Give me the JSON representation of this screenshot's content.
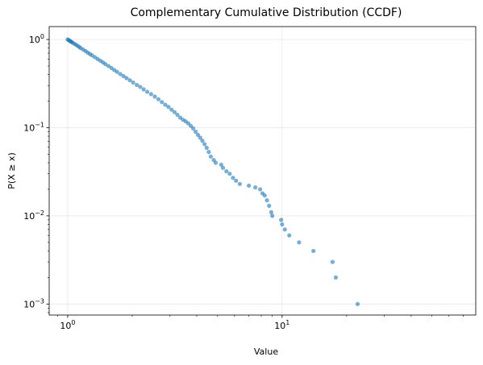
{
  "chart_data": {
    "type": "scatter",
    "title": "Complementary Cumulative Distribution (CCDF)",
    "xlabel": "Value",
    "ylabel": "P(X ≥ x)",
    "xscale": "log",
    "yscale": "log",
    "xlim": [
      0.82,
      80
    ],
    "ylim": [
      0.00075,
      1.4
    ],
    "grid": true,
    "marker_color": "#1f77b4",
    "x_ticks": [
      {
        "value": 1,
        "base": "10",
        "exp": "0"
      },
      {
        "value": 10,
        "base": "10",
        "exp": "1"
      }
    ],
    "y_ticks": [
      {
        "value": 1,
        "base": "10",
        "exp": "0"
      },
      {
        "value": 0.1,
        "base": "10",
        "exp": "−1"
      },
      {
        "value": 0.01,
        "base": "10",
        "exp": "−2"
      },
      {
        "value": 0.001,
        "base": "10",
        "exp": "−3"
      }
    ],
    "points": [
      [
        1.0,
        1.0
      ],
      [
        1.01,
        0.985
      ],
      [
        1.02,
        0.97
      ],
      [
        1.03,
        0.955
      ],
      [
        1.04,
        0.94
      ],
      [
        1.05,
        0.925
      ],
      [
        1.07,
        0.9
      ],
      [
        1.09,
        0.875
      ],
      [
        1.11,
        0.85
      ],
      [
        1.13,
        0.825
      ],
      [
        1.15,
        0.8
      ],
      [
        1.18,
        0.77
      ],
      [
        1.21,
        0.74
      ],
      [
        1.24,
        0.71
      ],
      [
        1.27,
        0.685
      ],
      [
        1.3,
        0.66
      ],
      [
        1.34,
        0.63
      ],
      [
        1.38,
        0.6
      ],
      [
        1.42,
        0.575
      ],
      [
        1.46,
        0.55
      ],
      [
        1.5,
        0.525
      ],
      [
        1.55,
        0.5
      ],
      [
        1.6,
        0.475
      ],
      [
        1.65,
        0.45
      ],
      [
        1.7,
        0.43
      ],
      [
        1.76,
        0.405
      ],
      [
        1.82,
        0.385
      ],
      [
        1.88,
        0.365
      ],
      [
        1.95,
        0.345
      ],
      [
        2.02,
        0.325
      ],
      [
        2.1,
        0.305
      ],
      [
        2.18,
        0.29
      ],
      [
        2.26,
        0.272
      ],
      [
        2.35,
        0.255
      ],
      [
        2.45,
        0.24
      ],
      [
        2.55,
        0.225
      ],
      [
        2.65,
        0.21
      ],
      [
        2.75,
        0.195
      ],
      [
        2.85,
        0.182
      ],
      [
        2.95,
        0.172
      ],
      [
        3.05,
        0.16
      ],
      [
        3.15,
        0.15
      ],
      [
        3.25,
        0.14
      ],
      [
        3.35,
        0.13
      ],
      [
        3.45,
        0.123
      ],
      [
        3.55,
        0.118
      ],
      [
        3.65,
        0.112
      ],
      [
        3.75,
        0.105
      ],
      [
        3.85,
        0.098
      ],
      [
        3.95,
        0.09
      ],
      [
        4.05,
        0.083
      ],
      [
        4.15,
        0.077
      ],
      [
        4.25,
        0.071
      ],
      [
        4.35,
        0.065
      ],
      [
        4.45,
        0.059
      ],
      [
        4.55,
        0.053
      ],
      [
        4.65,
        0.047
      ],
      [
        4.8,
        0.043
      ],
      [
        4.9,
        0.04
      ],
      [
        5.2,
        0.038
      ],
      [
        5.3,
        0.035
      ],
      [
        5.5,
        0.032
      ],
      [
        5.7,
        0.03
      ],
      [
        5.9,
        0.027
      ],
      [
        6.1,
        0.025
      ],
      [
        6.35,
        0.023
      ],
      [
        7.0,
        0.022
      ],
      [
        7.5,
        0.021
      ],
      [
        7.9,
        0.02
      ],
      [
        8.1,
        0.018
      ],
      [
        8.3,
        0.017
      ],
      [
        8.5,
        0.015
      ],
      [
        8.7,
        0.013
      ],
      [
        8.9,
        0.011
      ],
      [
        9.0,
        0.01
      ],
      [
        9.9,
        0.009
      ],
      [
        10.0,
        0.008
      ],
      [
        10.3,
        0.007
      ],
      [
        10.8,
        0.006
      ],
      [
        12.0,
        0.005
      ],
      [
        14.0,
        0.004
      ],
      [
        17.2,
        0.003
      ],
      [
        17.8,
        0.002
      ],
      [
        22.5,
        0.001
      ]
    ]
  }
}
